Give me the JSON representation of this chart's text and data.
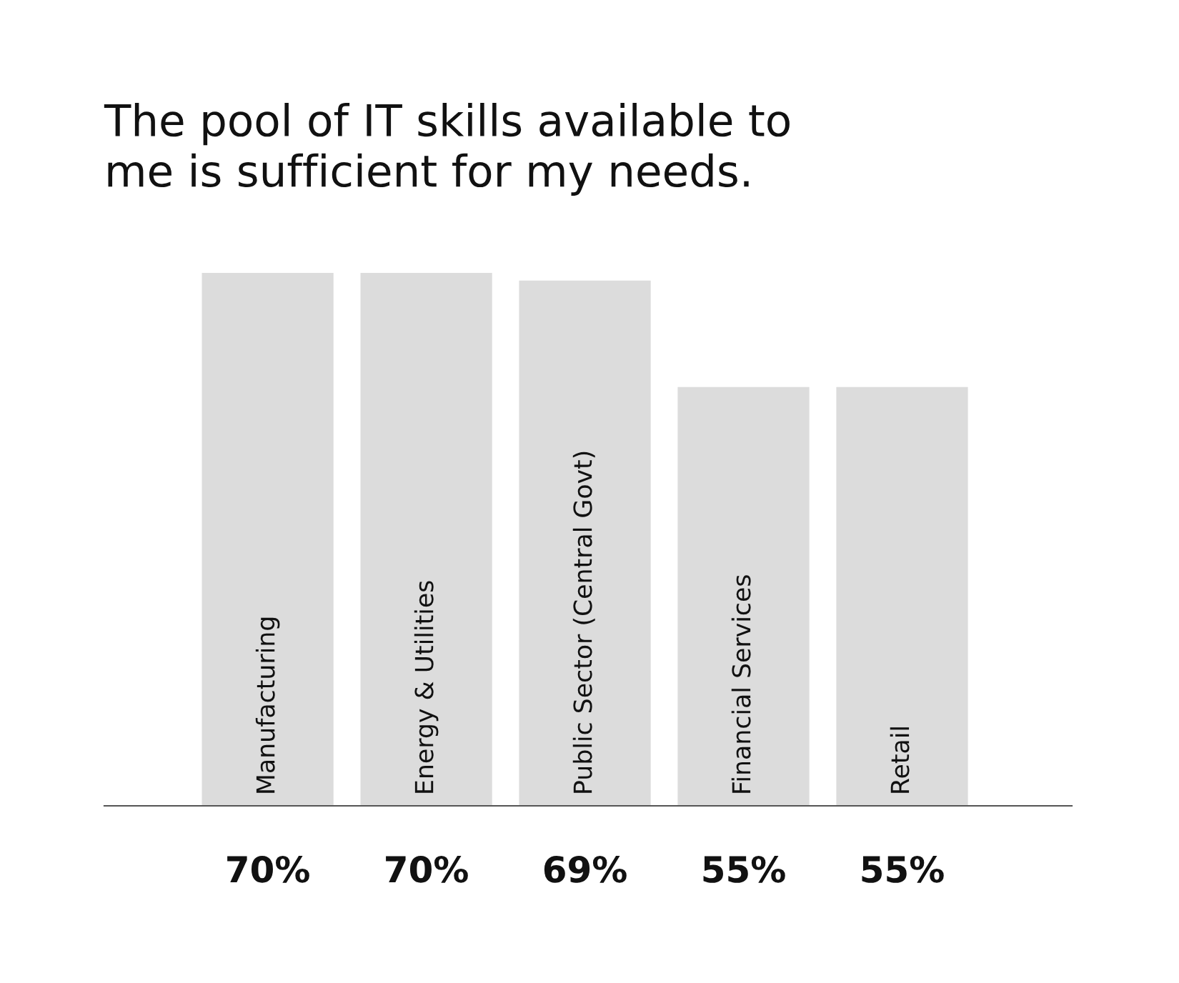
{
  "chart_data": {
    "type": "bar",
    "title": "The pool of IT skills available to\nme is sufficient for my needs.",
    "categories": [
      "Manufacturing",
      "Energy & Utilities",
      "Public Sector (Central Govt)",
      "Financial Services",
      "Retail"
    ],
    "values": [
      70,
      70,
      69,
      55,
      55
    ],
    "value_labels": [
      "70%",
      "70%",
      "69%",
      "55%",
      "55%"
    ],
    "color": "#dcdcdc"
  }
}
